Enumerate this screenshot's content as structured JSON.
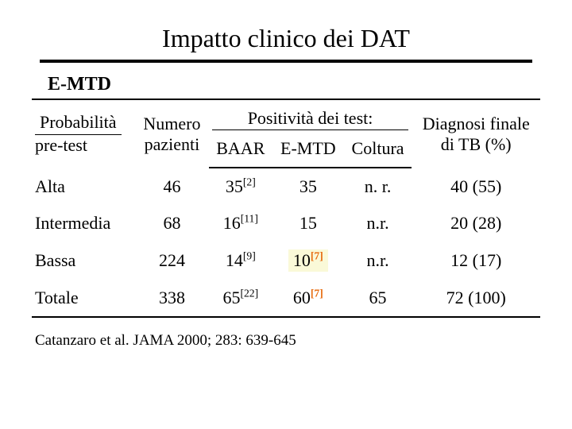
{
  "title": "Impatto clinico dei DAT",
  "subtitle": "E-MTD",
  "header": {
    "probabilita": "Probabilità",
    "pretest": "pre-test",
    "numero": "Numero",
    "pazienti": "pazienti",
    "positivita": "Positività dei test:",
    "baar": "BAAR",
    "emtd": "E-MTD",
    "coltura": "Coltura",
    "diagnosi1": "Diagnosi finale",
    "diagnosi2": "di TB (%)"
  },
  "rows": [
    {
      "label": "Alta",
      "pazienti": "46",
      "baar_val": "35",
      "baar_sup": "[2]",
      "baar_sup_cls": "",
      "emtd_val": "35",
      "emtd_sup": "",
      "emtd_sup_cls": "",
      "emtd_hl": false,
      "coltura": "n. r.",
      "diag": "40 (55)"
    },
    {
      "label": "Intermedia",
      "pazienti": "68",
      "baar_val": "16",
      "baar_sup": "[11]",
      "baar_sup_cls": "",
      "emtd_val": "15",
      "emtd_sup": "",
      "emtd_sup_cls": "",
      "emtd_hl": false,
      "coltura": "n.r.",
      "diag": "20 (28)"
    },
    {
      "label": "Bassa",
      "pazienti": "224",
      "baar_val": "14",
      "baar_sup": "[9]",
      "baar_sup_cls": "",
      "emtd_val": "10",
      "emtd_sup": "[7]",
      "emtd_sup_cls": "orange",
      "emtd_hl": true,
      "coltura": "n.r.",
      "diag": "12 (17)"
    },
    {
      "label": "Totale",
      "pazienti": "338",
      "baar_val": "65",
      "baar_sup": "[22]",
      "baar_sup_cls": "",
      "emtd_val": "60",
      "emtd_sup": "[7]",
      "emtd_sup_cls": "orange",
      "emtd_hl": false,
      "coltura": "65",
      "diag": "72 (100)"
    }
  ],
  "citation": "Catanzaro et al. JAMA 2000; 283: 639-645"
}
